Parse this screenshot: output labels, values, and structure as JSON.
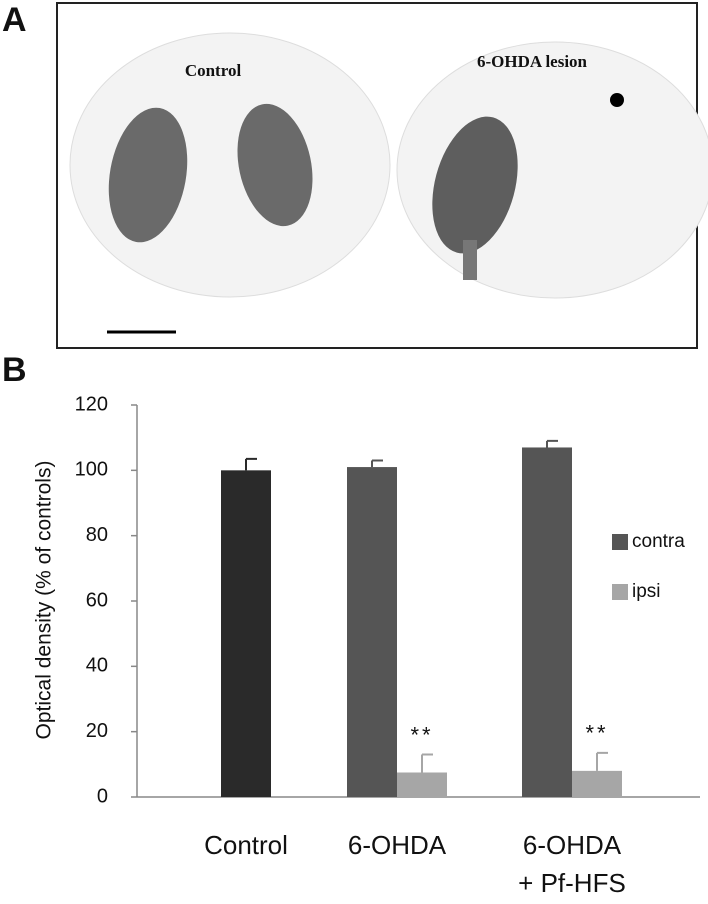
{
  "panel_a": {
    "letter": "A",
    "labels": [
      "Control",
      "6-OHDA lesion"
    ]
  },
  "chart_data": {
    "type": "bar",
    "panel_label": "B",
    "y_label": "Optical density (% of controls)",
    "categories": [
      [
        "Control"
      ],
      [
        "6-OHDA"
      ],
      [
        "6-OHDA",
        "+ Pf-HFS"
      ]
    ],
    "series": [
      {
        "name": "contra",
        "color": "#555555",
        "point_colors": [
          "#2a2a2a",
          "#555555",
          "#555555"
        ],
        "values": [
          100,
          101,
          107
        ],
        "errors": [
          3.5,
          2,
          2
        ]
      },
      {
        "name": "ipsi",
        "color": "#a6a6a6",
        "values": [
          null,
          7.5,
          8
        ],
        "errors": [
          null,
          5.5,
          5.5
        ],
        "significance": [
          null,
          "**",
          "**"
        ]
      }
    ],
    "ylim": [
      0,
      120
    ],
    "yticks": [
      0,
      20,
      40,
      60,
      80,
      100,
      120
    ],
    "grid": false,
    "legend": "right"
  }
}
